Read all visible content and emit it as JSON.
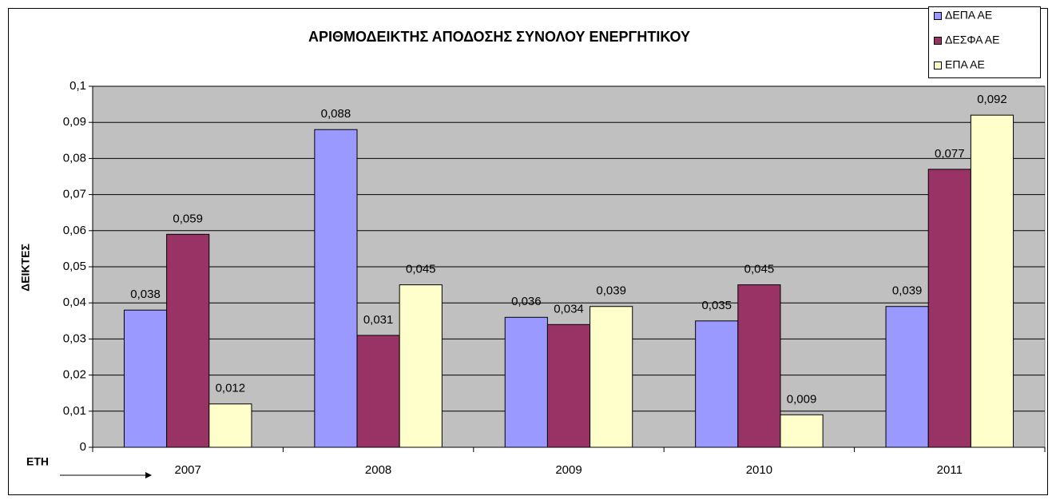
{
  "chart_data": {
    "type": "bar",
    "title": "ΑΡΙΘΜΟΔΕΙΚΤΗΣ ΑΠΟΔΟΣΗΣ ΣΥΝΟΛΟΥ ΕΝΕΡΓΗΤΙΚΟΥ",
    "y_label": "ΔΕΙΚΤΕΣ",
    "x_label": "ΕΤΗ",
    "categories": [
      "2007",
      "2008",
      "2009",
      "2010",
      "2011"
    ],
    "series": [
      {
        "name": "ΔΕΠΑ ΑΕ",
        "color": "#9999ff",
        "values": [
          0.038,
          0.088,
          0.036,
          0.035,
          0.039
        ],
        "value_labels": [
          "0,038",
          "0,088",
          "0,036",
          "0,035",
          "0,039"
        ]
      },
      {
        "name": "ΔΕΣΦΑ ΑΕ",
        "color": "#993366",
        "values": [
          0.059,
          0.031,
          0.034,
          0.045,
          0.077
        ],
        "value_labels": [
          "0,059",
          "0,031",
          "0,034",
          "0,045",
          "0,077"
        ]
      },
      {
        "name": "ΕΠΑ ΑΕ",
        "color": "#ffffcc",
        "values": [
          0.012,
          0.045,
          0.039,
          0.009,
          0.092
        ],
        "value_labels": [
          "0,012",
          "0,045",
          "0,039",
          "0,009",
          "0,092"
        ]
      }
    ],
    "ylim": [
      0,
      0.1
    ],
    "yticks": [
      0,
      {
        "value": 0.01,
        "label": "0,01"
      },
      {
        "value": 0.02,
        "label": "0,02"
      },
      {
        "value": 0.03,
        "label": "0,03"
      },
      {
        "value": 0.04,
        "label": "0,04"
      },
      {
        "value": 0.05,
        "label": "0,05"
      },
      {
        "value": 0.06,
        "label": "0,06"
      },
      {
        "value": 0.07,
        "label": "0,07"
      },
      {
        "value": 0.08,
        "label": "0,08"
      },
      {
        "value": 0.09,
        "label": "0,09"
      },
      {
        "value": 0.1,
        "label": "0,1"
      }
    ],
    "grid": true,
    "legend": "top-right"
  }
}
